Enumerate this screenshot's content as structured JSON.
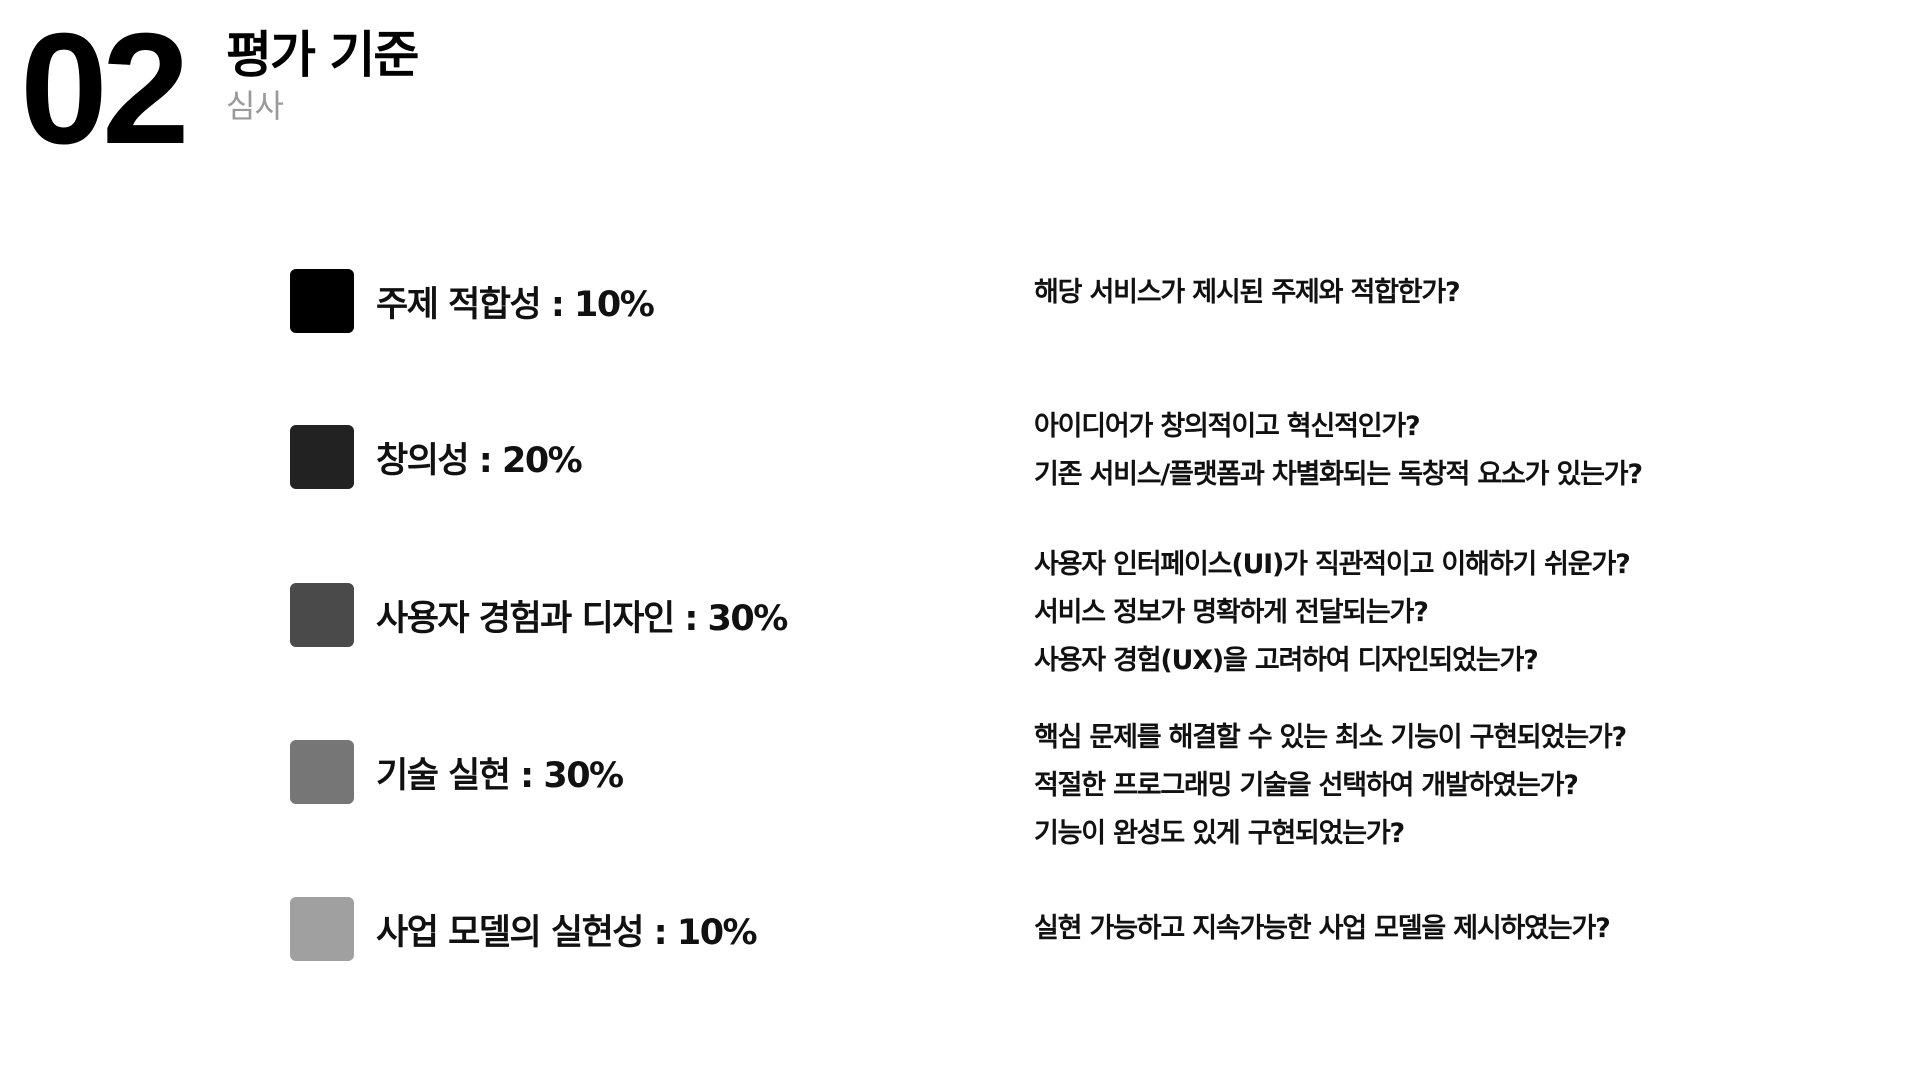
{
  "header": {
    "number": "02",
    "title": "평가 기준",
    "subtitle": "심사"
  },
  "criteria": [
    {
      "label": "주제 적합성 : 10%",
      "swatch_color": "#000000",
      "questions": [
        "해당 서비스가 제시된 주제와 적합한가?"
      ]
    },
    {
      "label": "창의성 : 20%",
      "swatch_color": "#222222",
      "questions": [
        "아이디어가 창의적이고 혁신적인가?",
        "기존 서비스/플랫폼과 차별화되는 독창적 요소가 있는가?"
      ]
    },
    {
      "label": "사용자 경험과 디자인 : 30%",
      "swatch_color": "#4a4a4a",
      "questions": [
        "사용자 인터페이스(UI)가 직관적이고 이해하기 쉬운가?",
        "서비스 정보가 명확하게 전달되는가?",
        "사용자 경험(UX)을 고려하여 디자인되었는가?"
      ]
    },
    {
      "label": "기술 실현 : 30%",
      "swatch_color": "#767676",
      "questions": [
        "핵심 문제를 해결할 수 있는 최소 기능이 구현되었는가?",
        "적절한 프로그래밍 기술을 선택하여 개발하였는가?",
        "기능이 완성도 있게 구현되었는가?"
      ]
    },
    {
      "label": "사업 모델의 실현성 : 10%",
      "swatch_color": "#a0a0a0",
      "questions": [
        "실현 가능하고 지속가능한 사업 모델을 제시하였는가?"
      ]
    }
  ]
}
